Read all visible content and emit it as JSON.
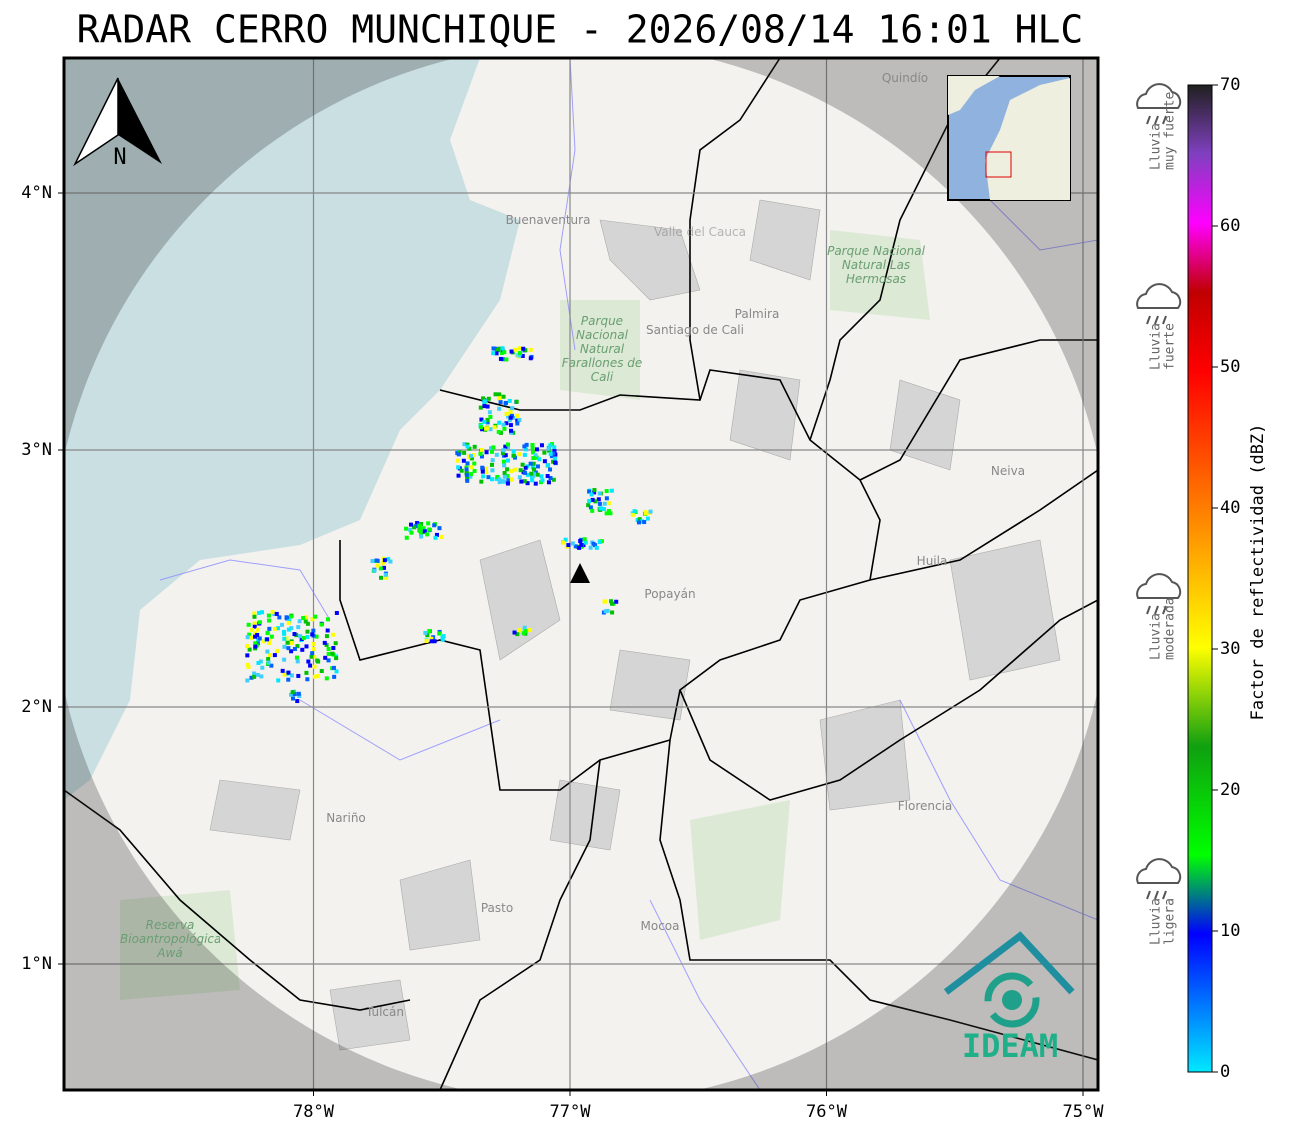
{
  "header": {
    "title": "RADAR CERRO MUNCHIQUE - 2026/08/14 16:01 HLC"
  },
  "map": {
    "lat_ticks": [
      {
        "value": 4,
        "label": "4°N"
      },
      {
        "value": 3,
        "label": "3°N"
      },
      {
        "value": 2,
        "label": "2°N"
      },
      {
        "value": 1,
        "label": "1°N"
      }
    ],
    "lon_ticks": [
      {
        "value": -78,
        "label": "78°W"
      },
      {
        "value": -77,
        "label": "77°W"
      },
      {
        "value": -76,
        "label": "76°W"
      },
      {
        "value": -75,
        "label": "75°W"
      }
    ],
    "north": "N",
    "places": [
      "Buenaventura",
      "Valle del Cauca",
      "Santiago de Cali",
      "Palmira",
      "Parque Nacional Natural Farallones de Cali",
      "Parque Nacional Natural Las Hermosas",
      "Neiva",
      "Huila",
      "Popayán",
      "Nariño",
      "Pasto",
      "Mocoa",
      "Florencia",
      "Tulcán",
      "Reserva Bioantropológica Awá",
      "Quindío"
    ],
    "logo": "IDEAM"
  },
  "colorbar": {
    "label": "Factor de reflectividad (dBZ)",
    "ticks": [
      0,
      10,
      20,
      30,
      40,
      50,
      60,
      70
    ]
  },
  "rain_levels": [
    {
      "lines": [
        "Lluvia",
        "muy fuerte"
      ]
    },
    {
      "lines": [
        "Lluvia",
        "fuerte"
      ]
    },
    {
      "lines": [
        "Lluvia",
        "moderada"
      ]
    },
    {
      "lines": [
        "Lluvia",
        "ligera"
      ]
    }
  ]
}
